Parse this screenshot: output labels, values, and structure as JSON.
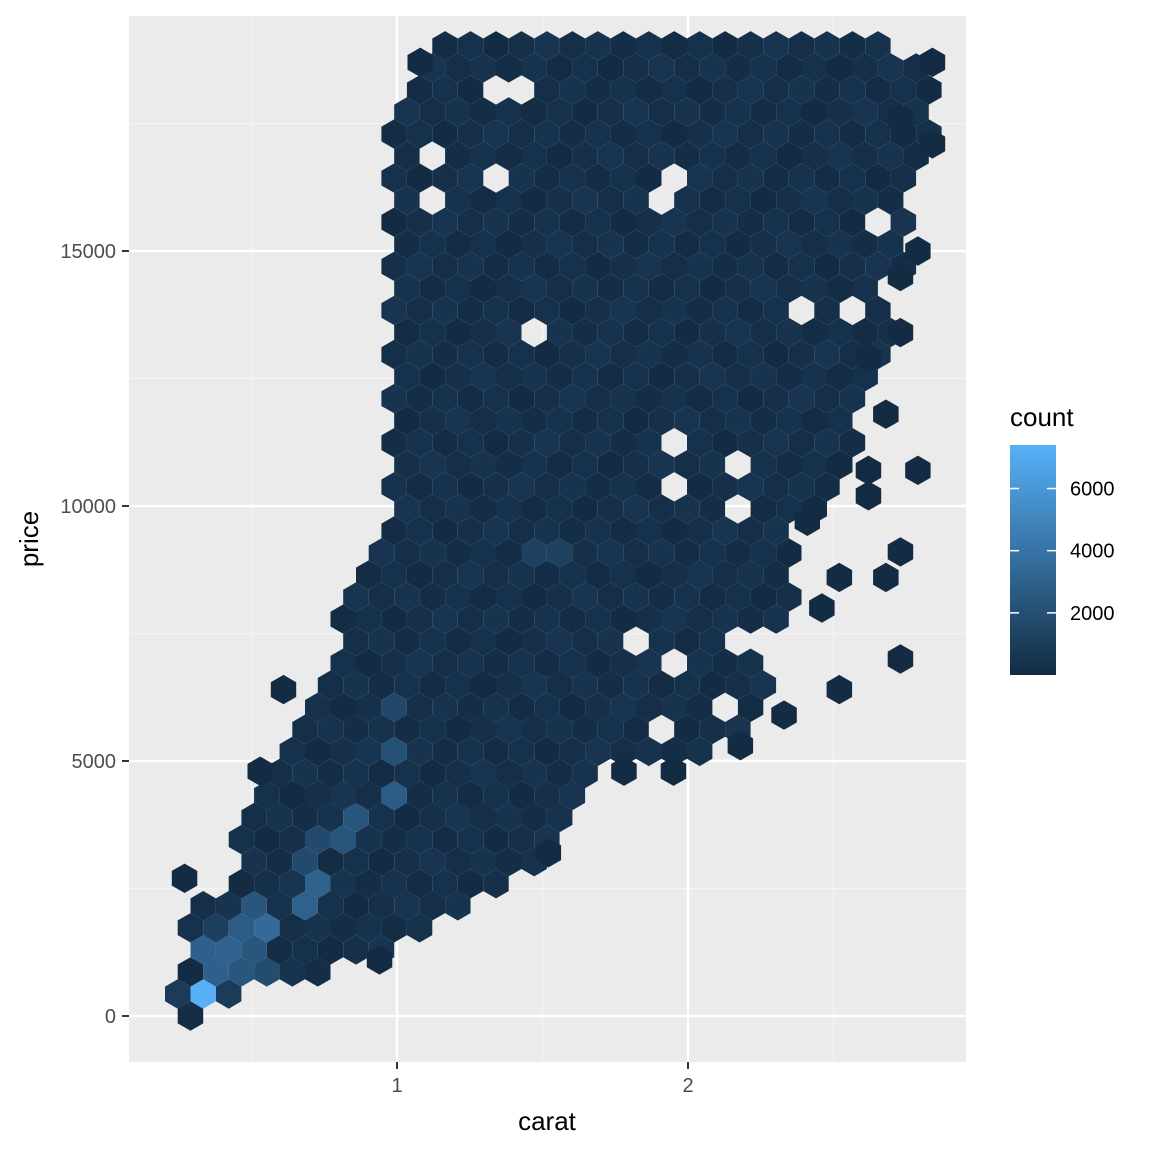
{
  "chart_data": {
    "type": "heatmap",
    "subtype": "hexbin",
    "title": "",
    "xlabel": "carat",
    "ylabel": "price",
    "xlim": [
      0.2,
      3.05
    ],
    "ylim": [
      -900,
      19600
    ],
    "x_ticks": [
      1,
      2
    ],
    "y_ticks": [
      0,
      5000,
      10000,
      15000
    ],
    "x_tick_labels": [
      "1",
      "2"
    ],
    "y_tick_labels": [
      "0",
      "5000",
      "10000",
      "15000"
    ],
    "grid": true,
    "legend": {
      "title": "count",
      "placement": "right",
      "breaks": [
        2000,
        4000,
        6000
      ],
      "break_labels": [
        "2000",
        "4000",
        "6000"
      ],
      "range": [
        1,
        7400
      ],
      "low_color": "#132B43",
      "high_color": "#56B1F7"
    },
    "bins": [
      {
        "x": 0.31,
        "y": 0,
        "count": 60
      },
      {
        "x": 0.27,
        "y": 550,
        "count": 900
      },
      {
        "x": 0.31,
        "y": 550,
        "count": 7400
      },
      {
        "x": 0.36,
        "y": 550,
        "count": 2600
      },
      {
        "x": 0.44,
        "y": 550,
        "count": 900
      },
      {
        "x": 0.36,
        "y": 1100,
        "count": 2900
      },
      {
        "x": 0.41,
        "y": 1100,
        "count": 3100
      },
      {
        "x": 0.49,
        "y": 1100,
        "count": 2400
      },
      {
        "x": 0.53,
        "y": 1100,
        "count": 1800
      },
      {
        "x": 0.41,
        "y": 1600,
        "count": 1100
      },
      {
        "x": 0.49,
        "y": 1600,
        "count": 2700
      },
      {
        "x": 0.53,
        "y": 1600,
        "count": 3500
      },
      {
        "x": 0.53,
        "y": 2100,
        "count": 2400
      },
      {
        "x": 0.68,
        "y": 2100,
        "count": 3000
      },
      {
        "x": 0.72,
        "y": 2700,
        "count": 3100
      },
      {
        "x": 0.72,
        "y": 3200,
        "count": 1700
      },
      {
        "x": 0.82,
        "y": 3700,
        "count": 2300
      },
      {
        "x": 0.99,
        "y": 4200,
        "count": 2700
      },
      {
        "x": 0.99,
        "y": 5300,
        "count": 2100
      },
      {
        "x": 0.99,
        "y": 6300,
        "count": 1600
      },
      {
        "x": 1.52,
        "y": 9000,
        "count": 1200
      }
    ],
    "outlier_bins": [
      {
        "x": 0.27,
        "y": 2700
      },
      {
        "x": 0.53,
        "y": 4800
      },
      {
        "x": 0.61,
        "y": 6400
      },
      {
        "x": 0.94,
        "y": 1100
      },
      {
        "x": 1.52,
        "y": 3200
      },
      {
        "x": 1.78,
        "y": 4800
      },
      {
        "x": 1.95,
        "y": 4800
      },
      {
        "x": 2.18,
        "y": 5300
      },
      {
        "x": 2.33,
        "y": 5900
      },
      {
        "x": 2.52,
        "y": 6400
      },
      {
        "x": 2.52,
        "y": 8600
      },
      {
        "x": 2.46,
        "y": 8000
      },
      {
        "x": 2.73,
        "y": 7000
      },
      {
        "x": 2.41,
        "y": 9700
      },
      {
        "x": 2.62,
        "y": 10200
      },
      {
        "x": 2.73,
        "y": 9100
      },
      {
        "x": 2.68,
        "y": 8600
      },
      {
        "x": 2.62,
        "y": 10700
      },
      {
        "x": 2.79,
        "y": 10700
      },
      {
        "x": 2.68,
        "y": 11800
      },
      {
        "x": 2.62,
        "y": 12900
      },
      {
        "x": 2.73,
        "y": 13400
      },
      {
        "x": 2.73,
        "y": 14500
      },
      {
        "x": 2.79,
        "y": 15000
      },
      {
        "x": 2.84,
        "y": 17100
      },
      {
        "x": 2.84,
        "y": 18700
      },
      {
        "x": 2.73,
        "y": 17600
      },
      {
        "x": 1.08,
        "y": 18700
      }
    ],
    "annotations": []
  }
}
